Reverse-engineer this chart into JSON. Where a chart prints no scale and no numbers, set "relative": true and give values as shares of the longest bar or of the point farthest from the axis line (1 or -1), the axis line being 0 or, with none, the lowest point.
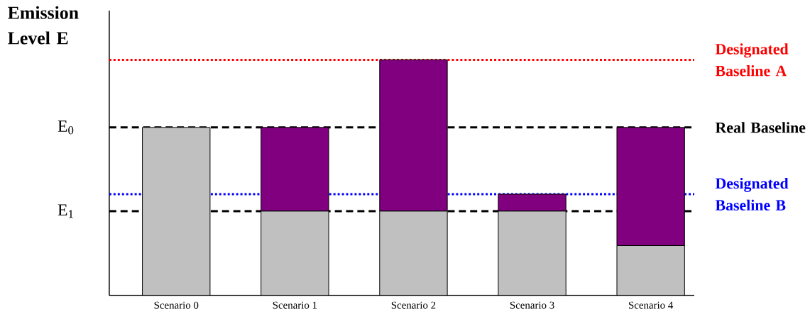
{
  "chart_data": {
    "type": "bar",
    "stacked": true,
    "relative": true,
    "ylabel": "Emission Level E",
    "categories": [
      "Scenario 0",
      "Scenario 1",
      "Scenario 2",
      "Scenario 3",
      "Scenario 4"
    ],
    "series": [
      {
        "color": "#c0c0c0",
        "values": [
          0.713,
          0.358,
          0.358,
          0.358,
          0.212
        ]
      },
      {
        "color": "#800080",
        "values": [
          null,
          0.355,
          0.642,
          0.072,
          0.501
        ]
      }
    ],
    "ref_lines": [
      {
        "axis": "y",
        "value": 1.0,
        "label": "Designated Baseline A",
        "color": "#ff0000",
        "line_style": "dotted"
      },
      {
        "axis": "y",
        "value": 0.713,
        "label": "Real Baseline",
        "color": "#000000",
        "line_style": "dashed"
      },
      {
        "axis": "y",
        "value": 0.43,
        "label": "Designated Baseline B",
        "color": "#0000ff",
        "line_style": "dotted"
      },
      {
        "axis": "y",
        "value": 0.358,
        "color": "#000000",
        "line_style": "dashed"
      }
    ],
    "annotations": [
      "E$_{0}$",
      "E$_{1}$"
    ]
  }
}
